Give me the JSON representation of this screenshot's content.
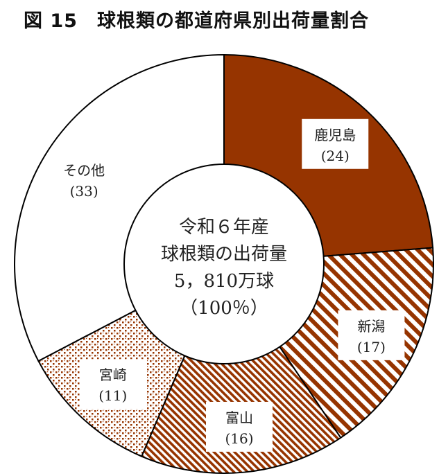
{
  "title": {
    "figure_no": "図 15",
    "text": "球根類の都道府県別出荷量割合"
  },
  "center_label": {
    "line1": "令和６年産",
    "line2": "球根類の出荷量",
    "line3": "5，810万球",
    "line4": "（100％）"
  },
  "chart_data": {
    "type": "pie",
    "subtype": "donut",
    "unit": "%",
    "categories": [
      "鹿児島",
      "新潟",
      "富山",
      "宮崎",
      "その他"
    ],
    "values": [
      24,
      17,
      16,
      11,
      33
    ],
    "value_labels": [
      "(24)",
      "(17)",
      "(16)",
      "(11)",
      "(33)"
    ],
    "fills": [
      "solid-brown",
      "diagonal-stripes",
      "diagonal-hatch",
      "dotted-check",
      "white"
    ],
    "colors": {
      "brown": "#963400",
      "outline": "#000000",
      "background": "#ffffff"
    },
    "start_angle_deg": 0,
    "direction": "clockwise"
  }
}
